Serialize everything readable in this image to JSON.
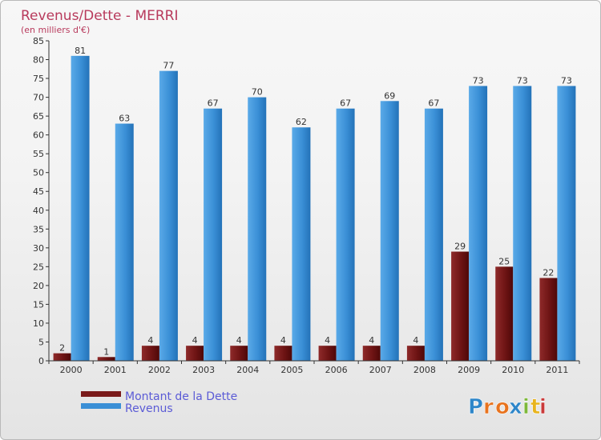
{
  "chart_data": {
    "type": "bar",
    "title": "Revenus/Dette - MERRI",
    "subtitle": "(en milliers d'€)",
    "categories": [
      "2000",
      "2001",
      "2002",
      "2003",
      "2004",
      "2005",
      "2006",
      "2007",
      "2008",
      "2009",
      "2010",
      "2011"
    ],
    "series": [
      {
        "name": "Montant de la Dette",
        "values": [
          2,
          1,
          4,
          4,
          4,
          4,
          4,
          4,
          4,
          29,
          25,
          22
        ],
        "color": "#7a1a1a"
      },
      {
        "name": "Revenus",
        "values": [
          81,
          63,
          77,
          67,
          70,
          62,
          67,
          69,
          67,
          73,
          73,
          73
        ],
        "color": "#3a8fd6"
      }
    ],
    "ylim": [
      0,
      85
    ],
    "yticks": [
      0,
      5,
      10,
      15,
      20,
      25,
      30,
      35,
      40,
      45,
      50,
      55,
      60,
      65,
      70,
      75,
      80,
      85
    ],
    "grid": false,
    "legend": "bottom-left"
  },
  "logo": {
    "text": "Proxiti",
    "letter_colors": [
      "#2e86c9",
      "#e8731e",
      "#e8731e",
      "#2e86c9",
      "#7db83a",
      "#e8b41e",
      "#c93a3a"
    ]
  }
}
